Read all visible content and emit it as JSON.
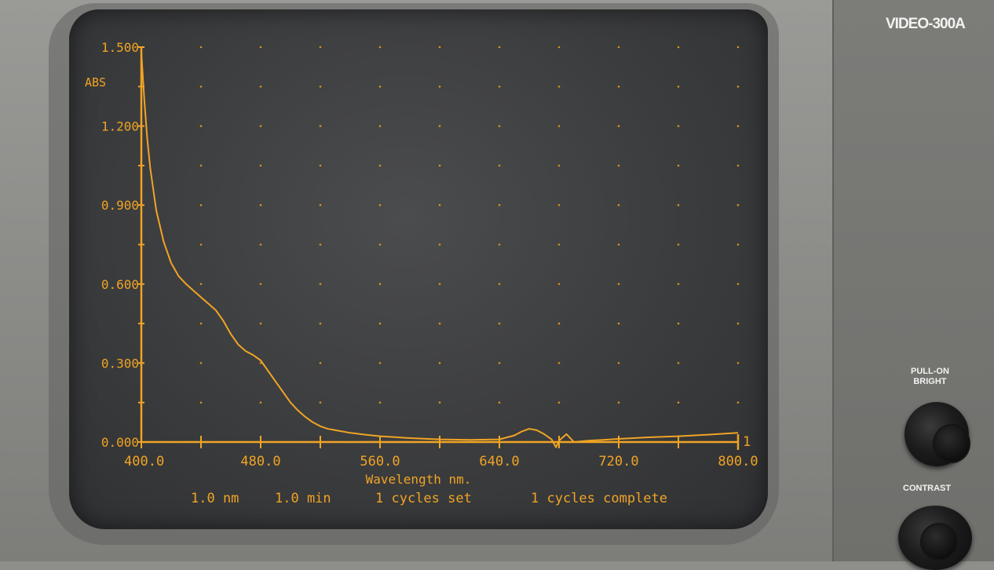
{
  "device": {
    "brand": "VIDEO-300A",
    "controls": {
      "bright_label": "PULL-ON\nBRIGHT",
      "contrast_label": "CONTRAST"
    }
  },
  "chart_data": {
    "type": "line",
    "title": "",
    "xlabel": "Wavelength nm.",
    "ylabel": "ABS",
    "xlim": [
      400,
      800
    ],
    "ylim": [
      0,
      1.5
    ],
    "x_tick_labels": [
      "400.0",
      "480.0",
      "560.0",
      "640.0",
      "720.0",
      "800.0"
    ],
    "y_tick_labels": [
      "0.000",
      "0.300",
      "0.600",
      "0.900",
      "1.200",
      "1.500"
    ],
    "grid": "dotted",
    "trace_label": "1",
    "status": [
      "1.0 nm",
      "1.0 min",
      "1 cycles set",
      "1 cycles complete"
    ],
    "colors": {
      "phosphor": "#f0a424",
      "grid": "#d8901c"
    },
    "series": [
      {
        "x": [
          400,
          402,
          404,
          406,
          408,
          410,
          415,
          420,
          425,
          430,
          435,
          440,
          445,
          450,
          455,
          460,
          465,
          470,
          475,
          480,
          485,
          490,
          495,
          500,
          505,
          510,
          515,
          520,
          525,
          530,
          540,
          550,
          560,
          580,
          600,
          620,
          640,
          650,
          655,
          660,
          665,
          670,
          675,
          678,
          680,
          685,
          690,
          700,
          720,
          740,
          760,
          780,
          800
        ],
        "y": [
          1.48,
          1.3,
          1.15,
          1.04,
          0.96,
          0.88,
          0.76,
          0.68,
          0.63,
          0.6,
          0.575,
          0.55,
          0.525,
          0.5,
          0.46,
          0.41,
          0.37,
          0.345,
          0.33,
          0.31,
          0.27,
          0.23,
          0.19,
          0.15,
          0.12,
          0.095,
          0.075,
          0.06,
          0.05,
          0.045,
          0.035,
          0.028,
          0.022,
          0.015,
          0.01,
          0.008,
          0.01,
          0.025,
          0.04,
          0.05,
          0.045,
          0.03,
          0.01,
          -0.02,
          0.005,
          0.03,
          0.0,
          0.005,
          0.012,
          0.018,
          0.022,
          0.028,
          0.035
        ]
      }
    ]
  }
}
